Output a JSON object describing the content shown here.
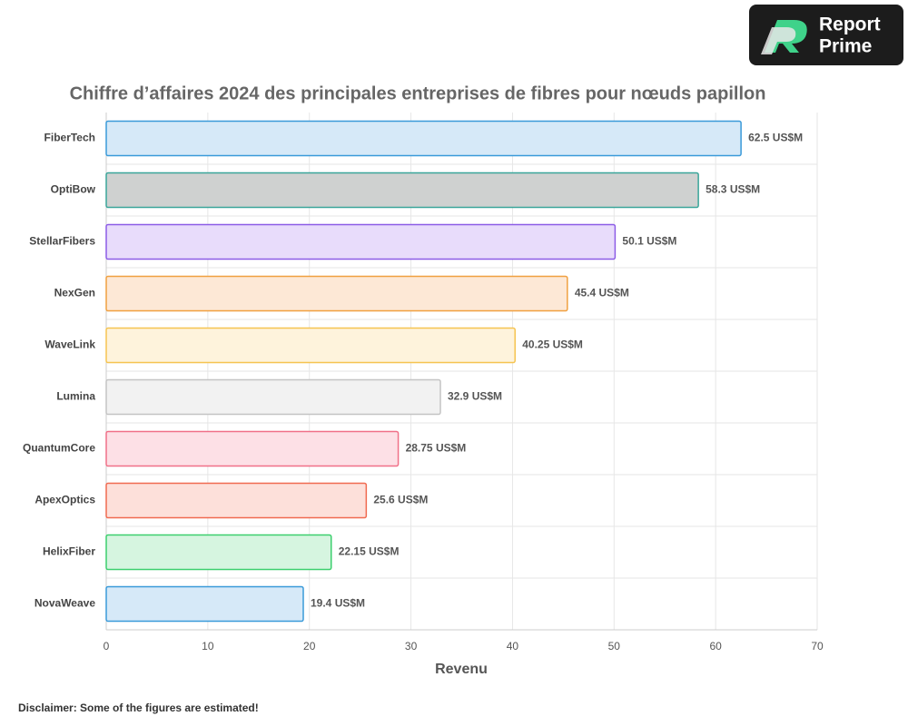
{
  "chart_data": {
    "type": "bar",
    "orientation": "horizontal",
    "title": "Chiffre d’affaires 2024 des principales entreprises de fibres pour nœuds papillon",
    "xlabel": "Revenu",
    "categories": [
      "FiberTech",
      "OptiBow",
      "StellarFibers",
      "NexGen",
      "WaveLink",
      "Lumina",
      "QuantumCore",
      "ApexOptics",
      "HelixFiber",
      "NovaWeave"
    ],
    "values": [
      62.5,
      58.3,
      50.1,
      45.4,
      40.25,
      32.9,
      28.75,
      25.6,
      22.15,
      19.4
    ],
    "value_labels": [
      "62.5 US$M",
      "58.3 US$M",
      "50.1 US$M",
      "45.4 US$M",
      "40.25 US$M",
      "32.9 US$M",
      "28.75 US$M",
      "25.6 US$M",
      "22.15 US$M",
      "19.4 US$M"
    ],
    "colors": [
      "#3a9ad9",
      "#3aa59a",
      "#8c5ce6",
      "#f0a040",
      "#f5c451",
      "#c4c4c4",
      "#f07088",
      "#f06a50",
      "#3ccf6e",
      "#3a9ad9"
    ],
    "fill_colors": [
      "#d6e9f8",
      "#cfd1d0",
      "#e8dcfb",
      "#fde8d6",
      "#fef3dc",
      "#f2f2f2",
      "#fde0e6",
      "#fde0da",
      "#d6f5e0",
      "#d6e9f8"
    ],
    "xlim": [
      0,
      70
    ],
    "xticks": [
      0,
      10,
      20,
      30,
      40,
      50,
      60,
      70
    ],
    "grid": true
  },
  "logo": {
    "line1": "Report",
    "line2": "Prime"
  },
  "disclaimer": "Disclaimer: Some of the figures are estimated!"
}
